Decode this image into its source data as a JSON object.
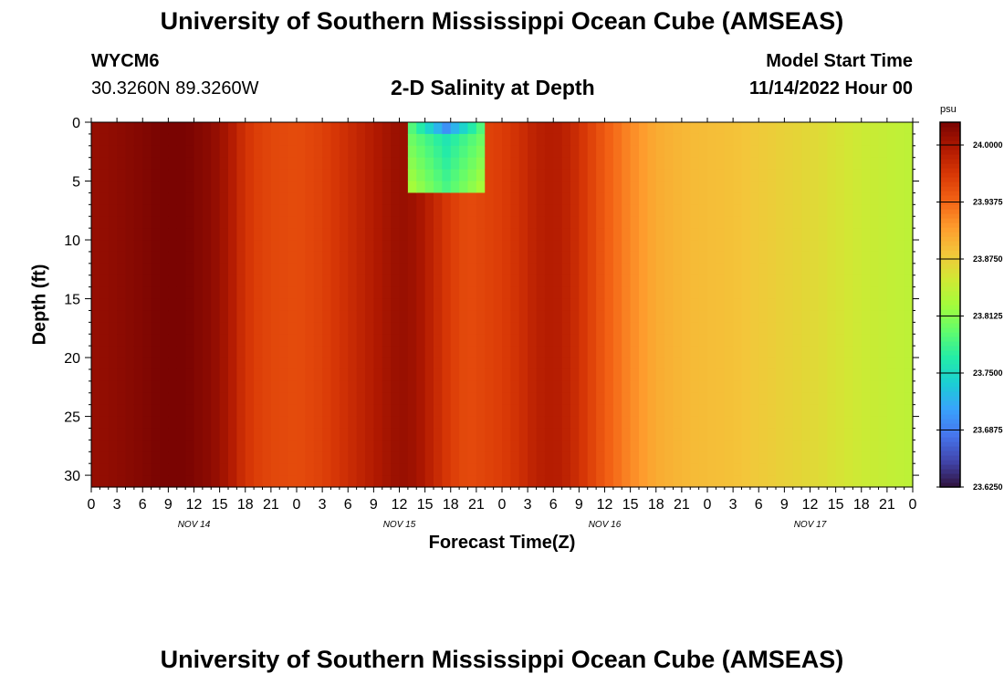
{
  "header": {
    "title": "University of Southern Mississippi Ocean Cube (AMSEAS)",
    "station": "WYCM6",
    "coordinates": "30.3260N  89.3260W",
    "subtitle": "2-D Salinity at Depth",
    "model_start_label": "Model Start Time",
    "model_start_value": "11/14/2022 Hour 00"
  },
  "footer": {
    "title": "University of Southern Mississippi Ocean Cube (AMSEAS)"
  },
  "chart_data": {
    "type": "heatmap",
    "title": "2-D Salinity at Depth",
    "xlabel": "Forecast Time(Z)",
    "ylabel": "Depth (ft)",
    "unit": "psu",
    "x_tick_labels": [
      "0",
      "3",
      "6",
      "9",
      "12",
      "15",
      "18",
      "21",
      "0",
      "3",
      "6",
      "9",
      "12",
      "15",
      "18",
      "21",
      "0",
      "3",
      "6",
      "9",
      "12",
      "15",
      "18",
      "21",
      "0",
      "3",
      "6",
      "9",
      "12",
      "15",
      "18",
      "21",
      "0"
    ],
    "x_range_hours": [
      0,
      96
    ],
    "day_labels": [
      {
        "hour": 12,
        "label": "NOV 14"
      },
      {
        "hour": 36,
        "label": "NOV 15"
      },
      {
        "hour": 60,
        "label": "NOV 16"
      },
      {
        "hour": 84,
        "label": "NOV 17"
      }
    ],
    "y_ticks": [
      0,
      5,
      10,
      15,
      20,
      25,
      30
    ],
    "y_range": [
      31,
      0
    ],
    "colorbar": {
      "range": [
        23.625,
        24.025
      ],
      "tick_values": [
        24.0,
        23.9375,
        23.875,
        23.8125,
        23.75,
        23.6875,
        23.625
      ],
      "tick_labels": [
        "24.0000",
        "23.9375",
        "23.8750",
        "23.8125",
        "23.7500",
        "23.6875",
        "23.6250"
      ],
      "colors": [
        "#30123b",
        "#4145ab",
        "#4675ed",
        "#39a2fc",
        "#1bcfd4",
        "#24eca6",
        "#61fc6c",
        "#a4fc3b",
        "#d1e834",
        "#f3c63a",
        "#fe9b2d",
        "#f36315",
        "#d93806",
        "#b11901",
        "#7a0402"
      ]
    },
    "series_name": "Salinity (psu)",
    "column_profile": [
      {
        "hour": 0,
        "value": 24.01
      },
      {
        "hour": 3,
        "value": 24.015
      },
      {
        "hour": 6,
        "value": 24.02
      },
      {
        "hour": 8,
        "value": 24.025
      },
      {
        "hour": 11,
        "value": 24.025
      },
      {
        "hour": 14,
        "value": 24.015
      },
      {
        "hour": 16,
        "value": 24.0
      },
      {
        "hour": 17.5,
        "value": 23.98
      },
      {
        "hour": 19,
        "value": 23.965
      },
      {
        "hour": 21,
        "value": 23.958
      },
      {
        "hour": 24,
        "value": 23.955
      },
      {
        "hour": 27,
        "value": 23.962
      },
      {
        "hour": 30,
        "value": 23.978
      },
      {
        "hour": 33,
        "value": 23.995
      },
      {
        "hour": 35,
        "value": 24.005
      },
      {
        "hour": 36,
        "value": 24.01
      },
      {
        "hour": 38,
        "value": 24.005
      },
      {
        "hour": 40,
        "value": 23.985
      },
      {
        "hour": 42,
        "value": 23.965
      },
      {
        "hour": 44,
        "value": 23.955
      },
      {
        "hour": 46,
        "value": 23.96
      },
      {
        "hour": 48,
        "value": 23.965
      },
      {
        "hour": 50,
        "value": 23.975
      },
      {
        "hour": 52,
        "value": 23.99
      },
      {
        "hour": 54,
        "value": 23.995
      },
      {
        "hour": 56,
        "value": 23.985
      },
      {
        "hour": 58,
        "value": 23.965
      },
      {
        "hour": 60,
        "value": 23.945
      },
      {
        "hour": 63,
        "value": 23.92
      },
      {
        "hour": 66,
        "value": 23.9
      },
      {
        "hour": 70,
        "value": 23.89
      },
      {
        "hour": 75,
        "value": 23.885
      },
      {
        "hour": 80,
        "value": 23.875
      },
      {
        "hour": 85,
        "value": 23.865
      },
      {
        "hour": 90,
        "value": 23.85
      },
      {
        "hour": 96,
        "value": 23.84
      }
    ],
    "low_salinity_patch": {
      "hour_range": [
        37,
        46
      ],
      "depth_range": [
        0,
        5.5
      ],
      "value": 23.8,
      "min_value": 23.7
    },
    "colorbar_position": "right"
  }
}
